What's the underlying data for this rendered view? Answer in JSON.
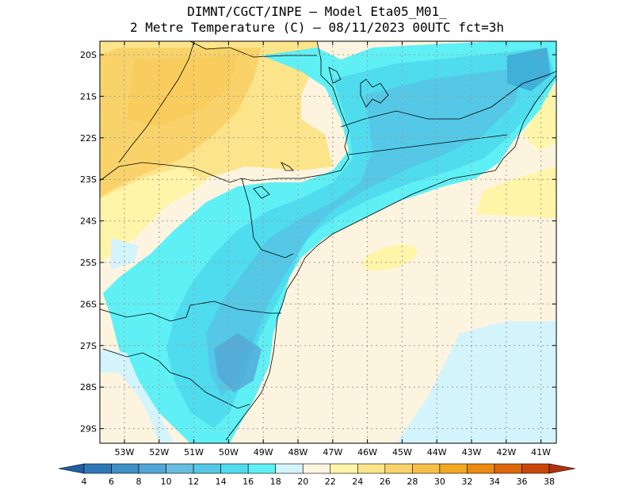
{
  "header": {
    "line1": "DIMNT/CGCT/INPE –  Model Eta05_M01_",
    "line2": "2 Metre Temperature (C) –  08/11/2023 00UTC fct=3h"
  },
  "map": {
    "lat_labels": [
      "20S",
      "21S",
      "22S",
      "23S",
      "24S",
      "25S",
      "26S",
      "27S",
      "28S",
      "29S"
    ],
    "lon_labels": [
      "53W",
      "52W",
      "51W",
      "50W",
      "49W",
      "48W",
      "47W",
      "46W",
      "45W",
      "44W",
      "43W",
      "42W",
      "41W"
    ],
    "grid": true,
    "border_color": "#000000"
  },
  "colorbar": {
    "labels": [
      "4",
      "6",
      "8",
      "10",
      "12",
      "14",
      "16",
      "18",
      "20",
      "22",
      "24",
      "26",
      "28",
      "30",
      "32",
      "34",
      "36",
      "38"
    ],
    "colors": [
      "#1f5fa6",
      "#2f78b8",
      "#3f8fc8",
      "#52a6d6",
      "#66bde0",
      "#54c8e6",
      "#4fdcef",
      "#5ff0f5",
      "#d4f4fb",
      "#fdf4e0",
      "#fff5a8",
      "#fce48a",
      "#f9d36a",
      "#f6bf45",
      "#f3a821",
      "#ec8a12",
      "#dd660a",
      "#c84708",
      "#b03010"
    ]
  }
}
